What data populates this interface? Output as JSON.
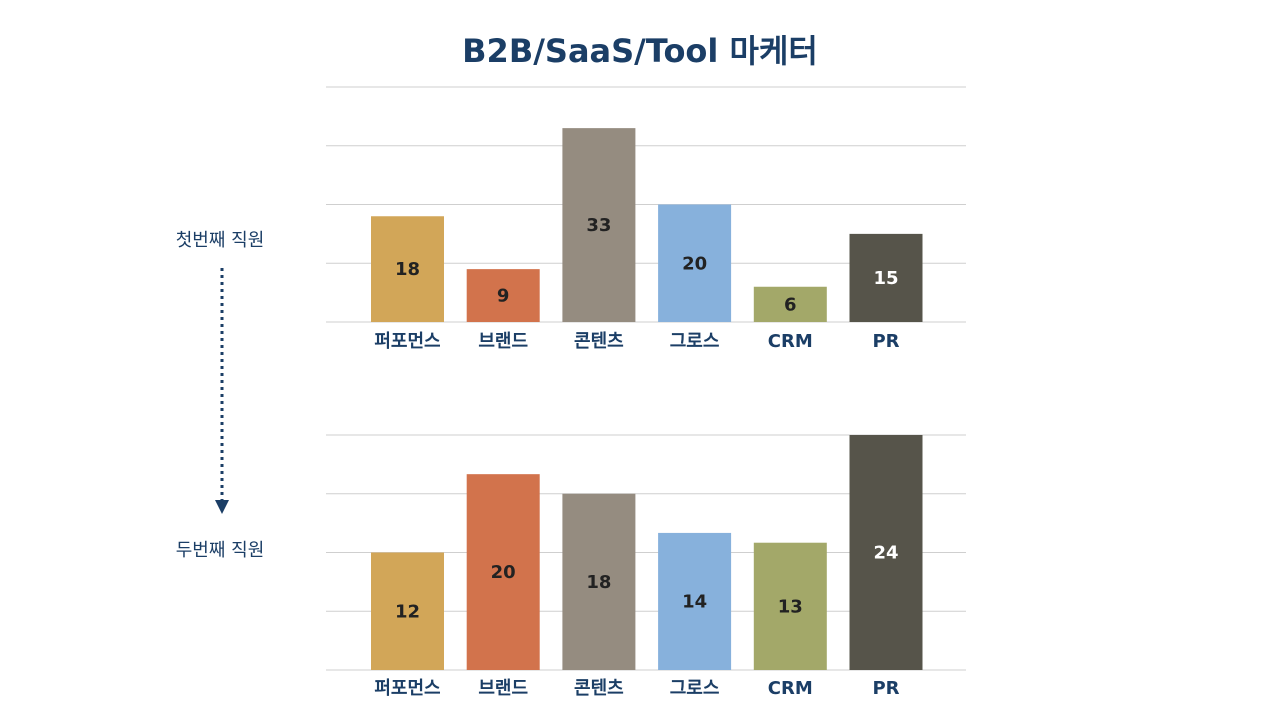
{
  "title": "B2B/SaaS/Tool 마케터",
  "row_labels": [
    "첫번째 직원",
    "두번째 직원"
  ],
  "colors": {
    "title": "#1b3e66",
    "arrow": "#1b3e66",
    "grid": "#cfcfcf",
    "bars": [
      "#d2a658",
      "#d2734c",
      "#958c80",
      "#87b1dc",
      "#a3a869",
      "#56544a"
    ]
  },
  "chart_data": [
    {
      "type": "bar",
      "categories": [
        "퍼포먼스",
        "브랜드",
        "콘텐츠",
        "그로스",
        "CRM",
        "PR"
      ],
      "values": [
        18,
        9,
        33,
        20,
        6,
        15
      ],
      "ylim": [
        0,
        40
      ],
      "grid": true
    },
    {
      "type": "bar",
      "categories": [
        "퍼포먼스",
        "브랜드",
        "콘텐츠",
        "그로스",
        "CRM",
        "PR"
      ],
      "values": [
        12,
        20,
        18,
        14,
        13,
        24
      ],
      "ylim": [
        0,
        24
      ],
      "grid": true
    }
  ]
}
